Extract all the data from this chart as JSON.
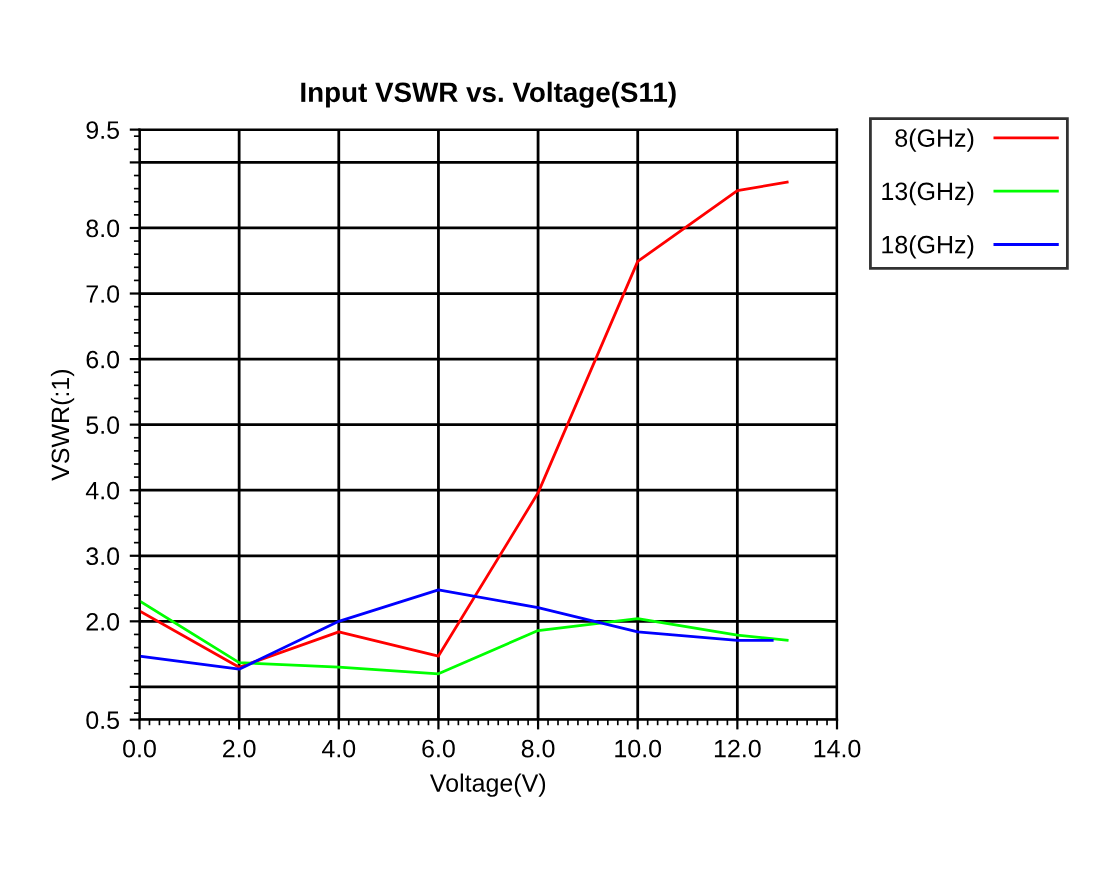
{
  "chart_data": {
    "type": "line",
    "title": "Input VSWR vs. Voltage(S11)",
    "xlabel": "Voltage(V)",
    "ylabel": "VSWR(:1)",
    "xlim": [
      0,
      14
    ],
    "ylim": [
      0.5,
      9.5
    ],
    "xticks": [
      {
        "value": 0,
        "label": "0.0"
      },
      {
        "value": 2,
        "label": "2.0"
      },
      {
        "value": 4,
        "label": "4.0"
      },
      {
        "value": 6,
        "label": "6.0"
      },
      {
        "value": 8,
        "label": "8.0"
      },
      {
        "value": 10,
        "label": "10.0"
      },
      {
        "value": 12,
        "label": "12.0"
      },
      {
        "value": 14,
        "label": "14.0"
      }
    ],
    "yticks": [
      0.5,
      {
        "value": 1,
        "label": null
      },
      {
        "value": 2,
        "label": "2.0"
      },
      {
        "value": 3,
        "label": "3.0"
      },
      {
        "value": 4,
        "label": "4.0"
      },
      {
        "value": 5,
        "label": "5.0"
      },
      {
        "value": 6,
        "label": "6.0"
      },
      {
        "value": 7,
        "label": "7.0"
      },
      {
        "value": 8,
        "label": "8.0"
      },
      {
        "value": 9,
        "label": null
      },
      9.5
    ],
    "grid": true,
    "legend": "top right",
    "marker": "none",
    "line_style": "solid",
    "series": [
      {
        "name": "8(GHz)",
        "color": "#ff0000",
        "x": [
          0,
          2,
          4,
          6,
          8,
          10,
          12,
          13
        ],
        "values": [
          2.16,
          1.3,
          1.84,
          1.47,
          3.96,
          7.49,
          8.57,
          8.7
        ]
      },
      {
        "name": "13(GHz)",
        "color": "#00ff00",
        "x": [
          0,
          2,
          4,
          6,
          8,
          10,
          12,
          13
        ],
        "values": [
          2.31,
          1.37,
          1.3,
          1.2,
          1.86,
          2.04,
          1.79,
          1.71
        ]
      },
      {
        "name": "18(GHz)",
        "color": "#0000ff",
        "x": [
          0,
          2,
          4,
          6,
          8,
          10,
          12,
          12.7
        ],
        "values": [
          1.47,
          1.27,
          2.0,
          2.48,
          2.21,
          1.84,
          1.71,
          1.71
        ]
      }
    ]
  }
}
